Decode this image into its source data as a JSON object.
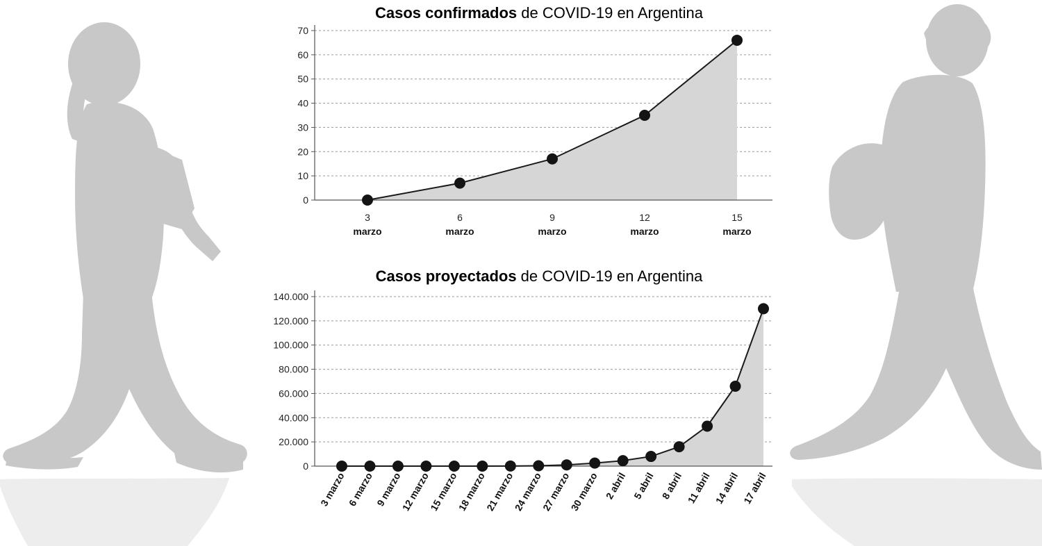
{
  "chart_data": [
    {
      "type": "area",
      "title_bold": "Casos confirmados",
      "title_rest": " de COVID-19 en Argentina",
      "xlabel": "",
      "ylabel": "",
      "ylim": [
        0,
        70
      ],
      "yticks": [
        0,
        10,
        20,
        30,
        40,
        50,
        60,
        70
      ],
      "ytick_labels": [
        "0",
        "10",
        "20",
        "30",
        "40",
        "50",
        "60",
        "70"
      ],
      "categories": [
        "3",
        "6",
        "9",
        "12",
        "15"
      ],
      "category_sublabel": "marzo",
      "x": [
        3,
        6,
        9,
        12,
        15
      ],
      "values": [
        0,
        7,
        17,
        35,
        66
      ],
      "grid": true,
      "marker": "circle"
    },
    {
      "type": "area",
      "title_bold": "Casos proyectados",
      "title_rest": " de COVID-19 en Argentina",
      "xlabel": "",
      "ylabel": "",
      "ylim": [
        0,
        140000
      ],
      "yticks": [
        0,
        20000,
        40000,
        60000,
        80000,
        100000,
        120000,
        140000
      ],
      "ytick_labels": [
        "0",
        "20.000",
        "40.000",
        "60.000",
        "80.000",
        "100.000",
        "120.000",
        "140.000"
      ],
      "categories": [
        "3 marzo",
        "6 marzo",
        "9 marzo",
        "12 marzo",
        "15 marzo",
        "18 marzo",
        "21 marzo",
        "24 marzo",
        "27 marzo",
        "30 marzo",
        "2 abril",
        "5 abril",
        "8 abril",
        "11 abril",
        "14 abril",
        "17 abril"
      ],
      "values": [
        0,
        0,
        0,
        0,
        0,
        0,
        100,
        300,
        1000,
        2500,
        4500,
        8000,
        16000,
        33000,
        66000,
        130000
      ],
      "grid": true,
      "marker": "circle"
    }
  ],
  "colors": {
    "silhouette": "#c8c8c8",
    "area_fill": "#d6d6d6",
    "line": "#1a1a1a",
    "marker": "#141414",
    "grid": "#9a9a9a",
    "axis": "#555555"
  }
}
